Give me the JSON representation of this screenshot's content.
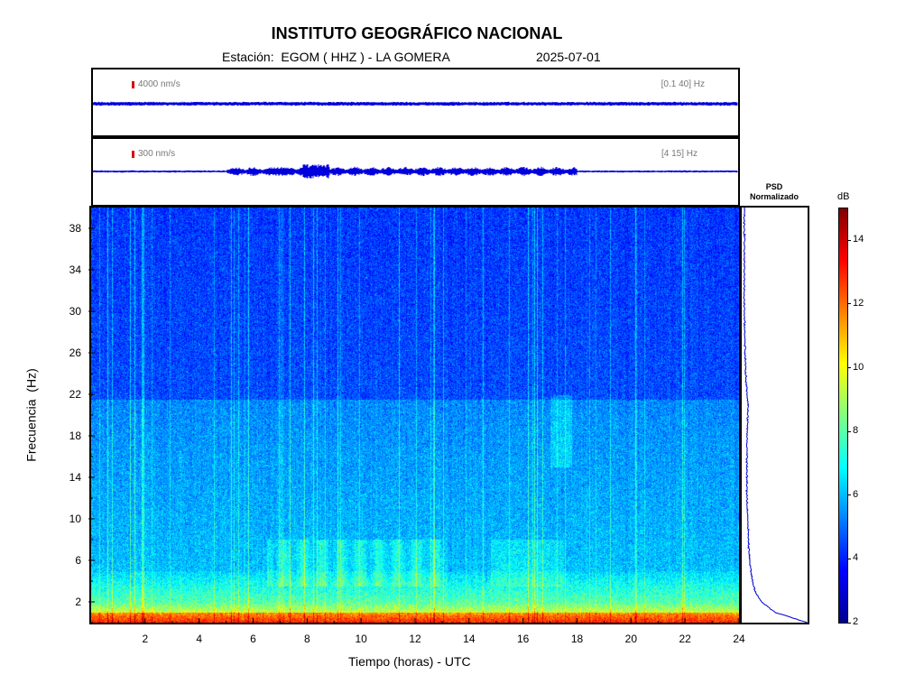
{
  "header": {
    "title": "INSTITUTO GEOGRÁFICO NACIONAL",
    "station_label": "Estación:  EGOM ( HHZ ) - LA GOMERA",
    "date": "2025-07-01"
  },
  "traces": [
    {
      "scale_label": "4000 nm/s",
      "band_label": "[0.1 40] Hz"
    },
    {
      "scale_label": "300 nm/s",
      "band_label": "[4 15] Hz"
    }
  ],
  "psd": {
    "title_line1": "PSD",
    "title_line2": "Normalizado"
  },
  "colorbar": {
    "unit": "dB",
    "range": [
      2,
      15
    ],
    "ticks": [
      "14",
      "12",
      "10",
      "8",
      "6",
      "4",
      "2"
    ],
    "colormap": [
      "#00008f",
      "#0000ff",
      "#0080ff",
      "#00ffff",
      "#80ff80",
      "#ffff00",
      "#ff8000",
      "#ff0000",
      "#800000"
    ]
  },
  "chart_data": {
    "type": "heatmap",
    "xlabel": "Tiempo (horas) - UTC",
    "ylabel": "Frecuencia  (Hz)",
    "xlim": [
      0,
      24
    ],
    "ylim": [
      0,
      40
    ],
    "x_ticks": [
      "2",
      "4",
      "6",
      "8",
      "10",
      "12",
      "14",
      "16",
      "18",
      "20",
      "22",
      "24"
    ],
    "y_ticks": [
      "38",
      "34",
      "30",
      "26",
      "22",
      "18",
      "14",
      "10",
      "6",
      "2"
    ],
    "psd_profile": {
      "frequency_hz": [
        0,
        1,
        2,
        3,
        4,
        5,
        6,
        7,
        8,
        10,
        12,
        14,
        16,
        18,
        20,
        21,
        22,
        24,
        26,
        30,
        34,
        38,
        40
      ],
      "normalized": [
        1.0,
        0.5,
        0.3,
        0.2,
        0.16,
        0.14,
        0.12,
        0.11,
        0.1,
        0.09,
        0.08,
        0.08,
        0.08,
        0.08,
        0.09,
        0.1,
        0.08,
        0.06,
        0.05,
        0.04,
        0.04,
        0.04,
        0.04
      ]
    }
  }
}
